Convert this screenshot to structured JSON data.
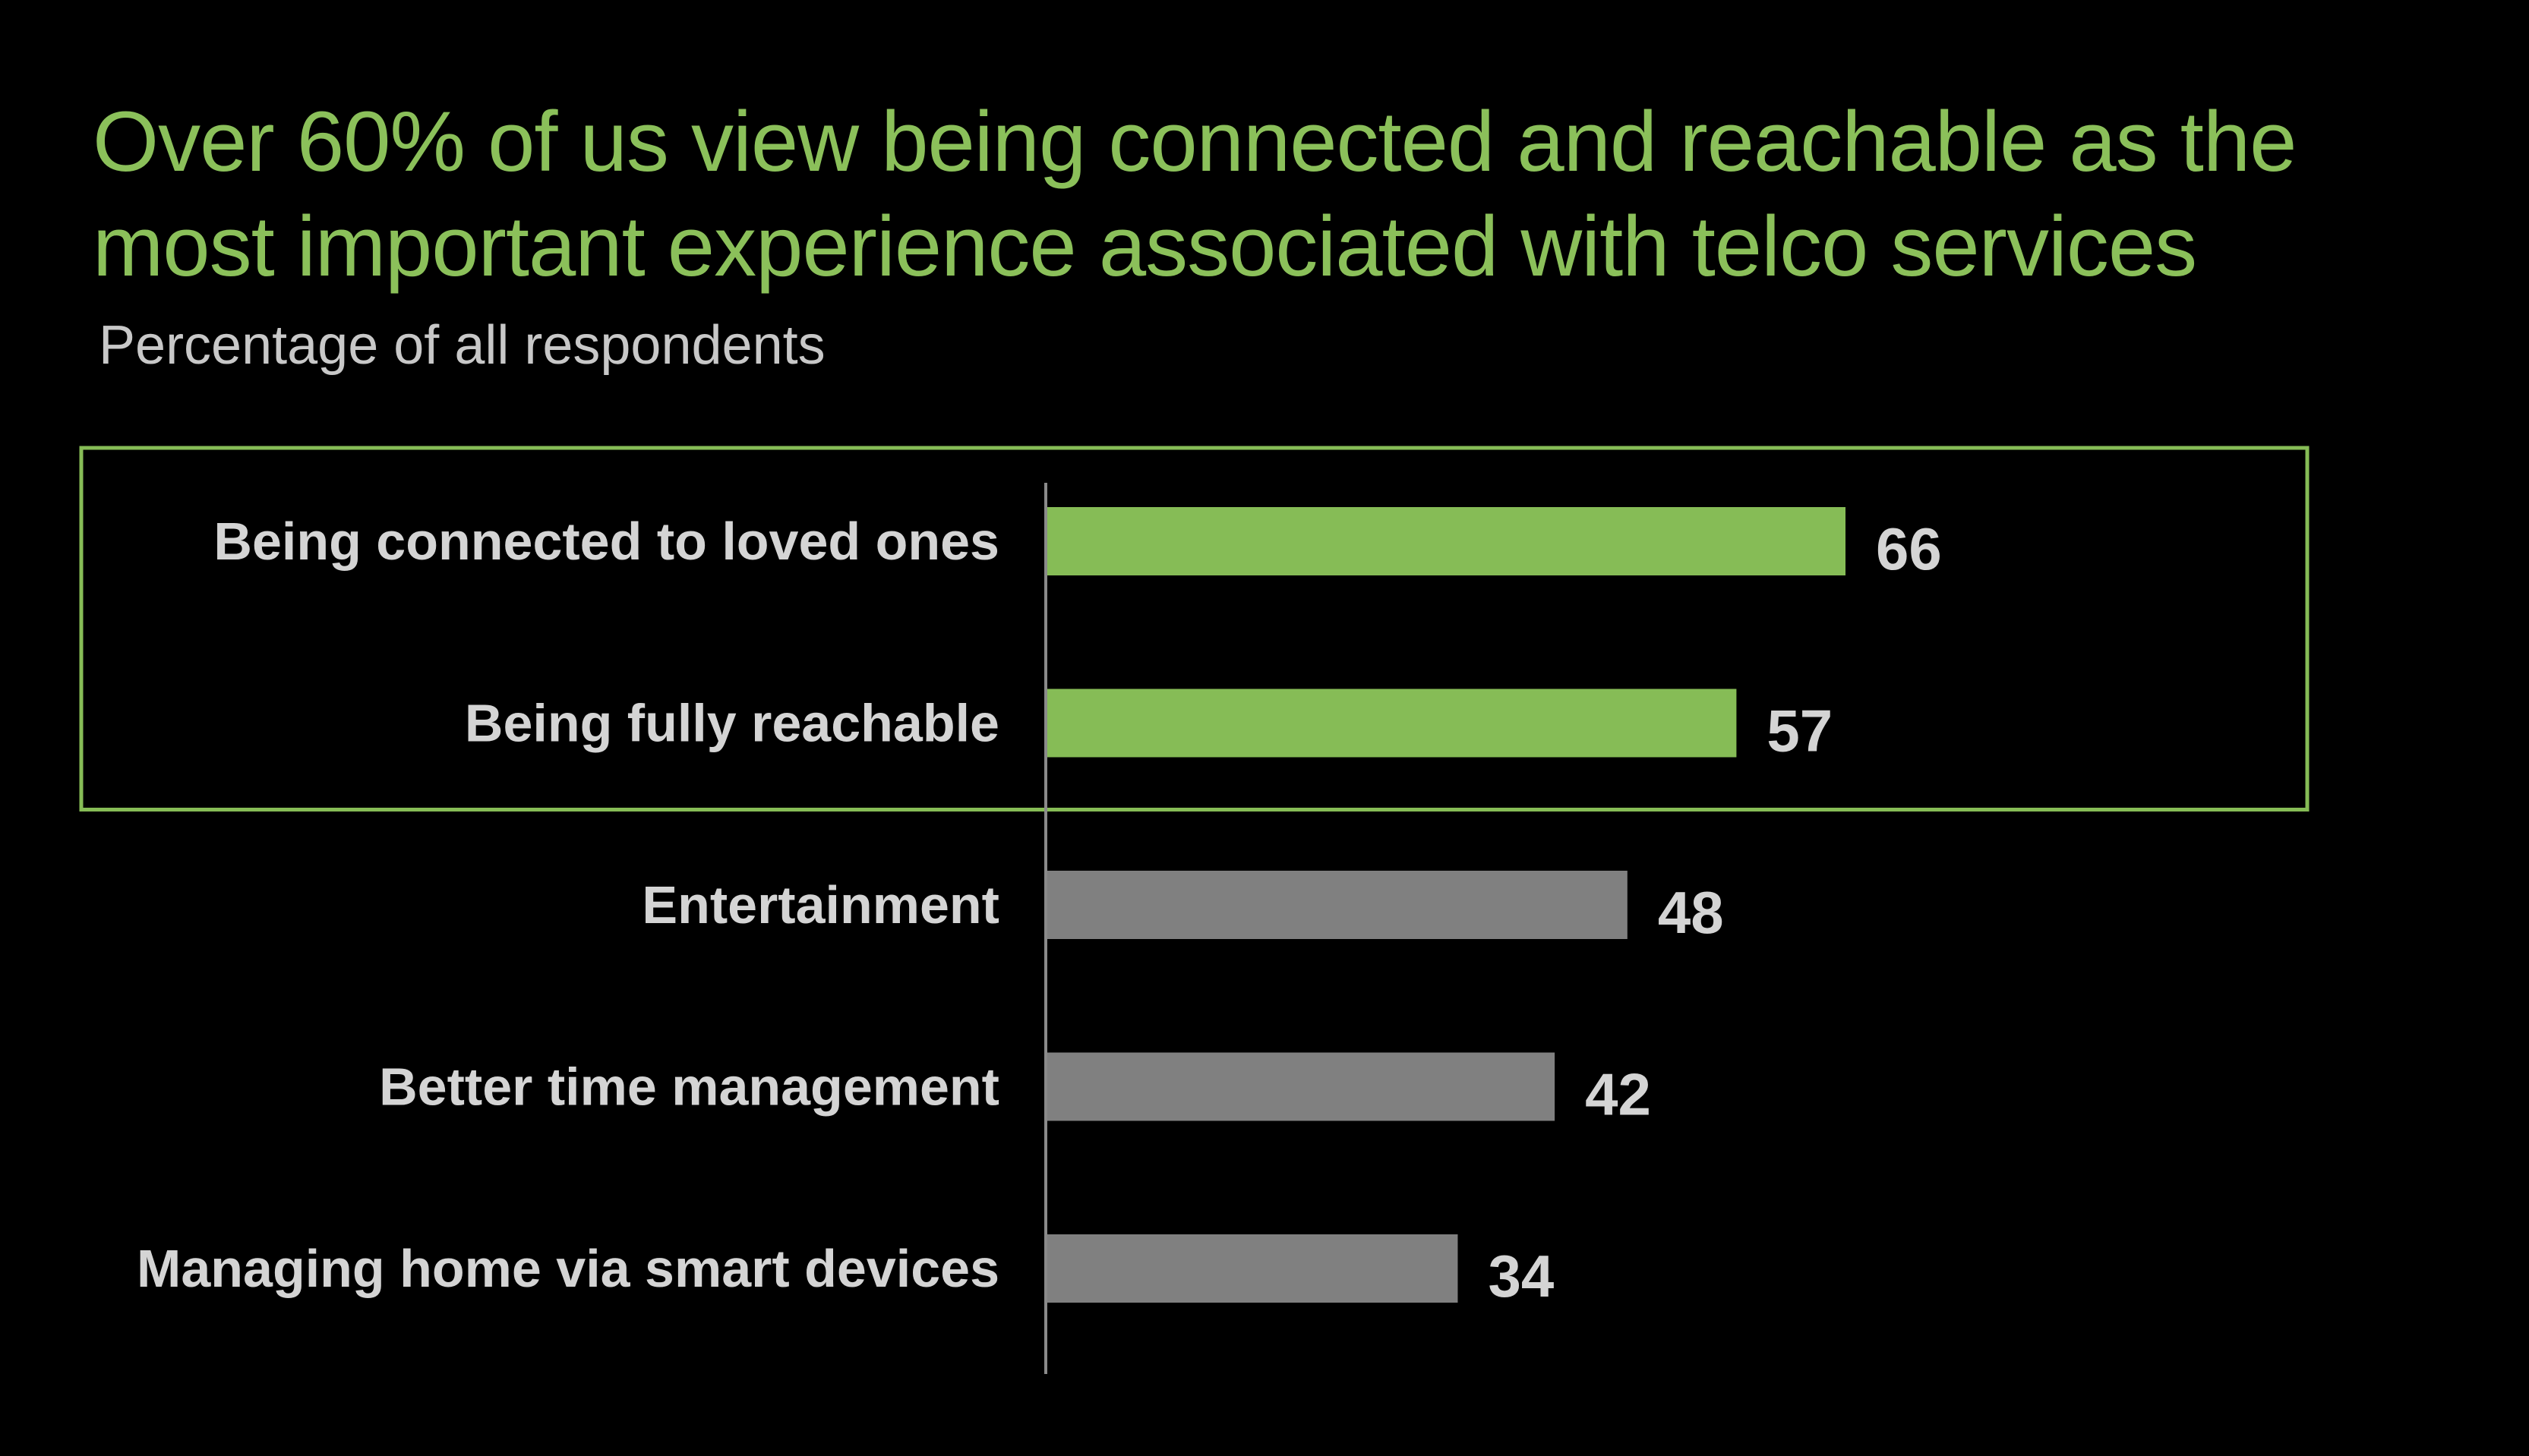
{
  "chart_data": {
    "type": "bar",
    "orientation": "horizontal",
    "title": "Over 60% of us view being connected and reachable as the most important experience associated with telco services",
    "subtitle": "Percentage of all respondents",
    "categories": [
      "Being connected to loved ones",
      "Being fully reachable",
      "Entertainment",
      "Better time management",
      "Managing home via smart devices"
    ],
    "values": [
      66,
      57,
      48,
      42,
      34
    ],
    "highlighted": [
      true,
      true,
      false,
      false,
      false
    ],
    "colors": {
      "highlight": "#86bc56",
      "default": "#808080",
      "frame": "#86bc56",
      "title": "#8bc05a",
      "text": "#d4d4d4",
      "axis": "#8a8a8a",
      "background": "#000000"
    },
    "xlim": [
      0,
      66
    ],
    "grid": false,
    "legend": "none"
  }
}
